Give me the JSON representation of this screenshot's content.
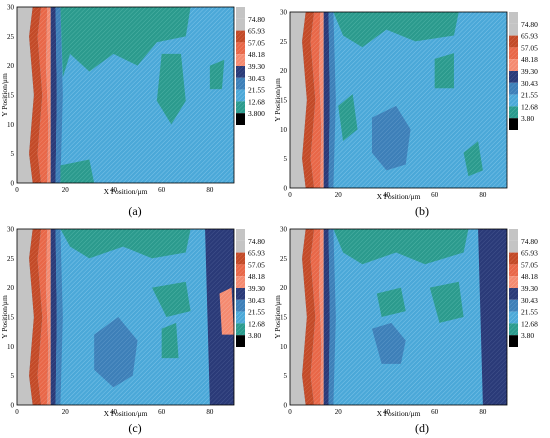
{
  "figure": {
    "panels": [
      {
        "caption": "(a)",
        "ylabel": "Y Position/μm",
        "xlabel": "X Position/μm",
        "legend": [
          "74.80",
          "65.93",
          "57.05",
          "48.18",
          "39.30",
          "30.43",
          "21.55",
          "12.68",
          "3.800"
        ]
      },
      {
        "caption": "(b)",
        "ylabel": "Y Position/μm",
        "xlabel": "X Position/μm",
        "legend": [
          "74.80",
          "65.93",
          "57.05",
          "48.18",
          "39.30",
          "30.43",
          "21.55",
          "12.68",
          "3.80"
        ]
      },
      {
        "caption": "(c)",
        "ylabel": "Y Position/μm",
        "xlabel": "X Position/μm",
        "legend": [
          "74.80",
          "65.93",
          "57.05",
          "48.18",
          "39.30",
          "30.43",
          "21.55",
          "12.68",
          "3.80"
        ]
      },
      {
        "caption": "(d)",
        "ylabel": "Y Position/μm",
        "xlabel": "X Position/μm",
        "legend": [
          "74.80",
          "65.93",
          "57.05",
          "48.18",
          "39.30",
          "30.43",
          "21.55",
          "12.68",
          "3.80"
        ]
      }
    ]
  },
  "chart_data": [
    {
      "type": "heatmap",
      "title": "",
      "caption": "(a)",
      "xlabel": "X Position/μm",
      "ylabel": "Y Position/μm",
      "xlim": [
        0,
        90
      ],
      "ylim": [
        0,
        30
      ],
      "x_ticks": [
        "0",
        "20",
        "40",
        "60",
        "80"
      ],
      "y_ticks": [
        "0",
        "5",
        "10",
        "15",
        "20",
        "25",
        "30"
      ],
      "levels": [
        3.8,
        12.68,
        21.55,
        30.43,
        39.3,
        48.18,
        57.05,
        65.93,
        74.8
      ],
      "level_colors": [
        "#000000",
        "#2b9a8d",
        "#4ba8d8",
        "#3d7fb8",
        "#2a3a78",
        "#f48a70",
        "#e86748",
        "#c24a28",
        "#c4c4c4"
      ],
      "dominant_level": 21.55,
      "features": "low-value region (12.68-21.55) in upper-middle band; high values (>57) in stripe near x=8-15"
    },
    {
      "type": "heatmap",
      "title": "",
      "caption": "(b)",
      "xlabel": "X Position/μm",
      "ylabel": "Y Position/μm",
      "xlim": [
        0,
        90
      ],
      "ylim": [
        0,
        30
      ],
      "x_ticks": [
        "0",
        "20",
        "40",
        "60",
        "80"
      ],
      "y_ticks": [
        "0",
        "5",
        "10",
        "15",
        "20",
        "25",
        "30"
      ],
      "levels": [
        3.8,
        12.68,
        21.55,
        30.43,
        39.3,
        48.18,
        57.05,
        65.93,
        74.8
      ],
      "level_colors": [
        "#000000",
        "#2b9a8d",
        "#4ba8d8",
        "#3d7fb8",
        "#2a3a78",
        "#f48a70",
        "#e86748",
        "#c24a28",
        "#c4c4c4"
      ],
      "dominant_level": 21.55,
      "features": "30.43-39.30 patch near x=40-50, y=5-12; low band at top"
    },
    {
      "type": "heatmap",
      "title": "",
      "caption": "(c)",
      "xlabel": "X Position/μm",
      "ylabel": "Y Position/μm",
      "xlim": [
        0,
        90
      ],
      "ylim": [
        0,
        30
      ],
      "x_ticks": [
        "0",
        "20",
        "40",
        "60",
        "80"
      ],
      "y_ticks": [
        "0",
        "5",
        "10",
        "15",
        "20",
        "25",
        "30"
      ],
      "levels": [
        3.8,
        12.68,
        21.55,
        30.43,
        39.3,
        48.18,
        57.05,
        65.93,
        74.8
      ],
      "level_colors": [
        "#000000",
        "#2b9a8d",
        "#4ba8d8",
        "#3d7fb8",
        "#2a3a78",
        "#f48a70",
        "#e86748",
        "#c24a28",
        "#c4c4c4"
      ],
      "dominant_level": 21.55,
      "features": "39.30-48.18 band at right edge x>78 with 57.05-65.93 spot near y=16; 30.43 patch near x=35-50, y=5-13"
    },
    {
      "type": "heatmap",
      "title": "",
      "caption": "(d)",
      "xlabel": "X Position/μm",
      "ylabel": "Y Position/μm",
      "xlim": [
        0,
        90
      ],
      "ylim": [
        0,
        30
      ],
      "x_ticks": [
        "0",
        "20",
        "40",
        "60",
        "80"
      ],
      "y_ticks": [
        "0",
        "5",
        "10",
        "15",
        "20",
        "25",
        "30"
      ],
      "levels": [
        3.8,
        12.68,
        21.55,
        30.43,
        39.3,
        48.18,
        57.05,
        65.93,
        74.8
      ],
      "level_colors": [
        "#000000",
        "#2b9a8d",
        "#4ba8d8",
        "#3d7fb8",
        "#2a3a78",
        "#f48a70",
        "#e86748",
        "#c24a28",
        "#c4c4c4"
      ],
      "dominant_level": 21.55,
      "features": "39.30-48.18 band at right edge x>78; 30.43 patch near x=35-48, y=8-14"
    }
  ]
}
